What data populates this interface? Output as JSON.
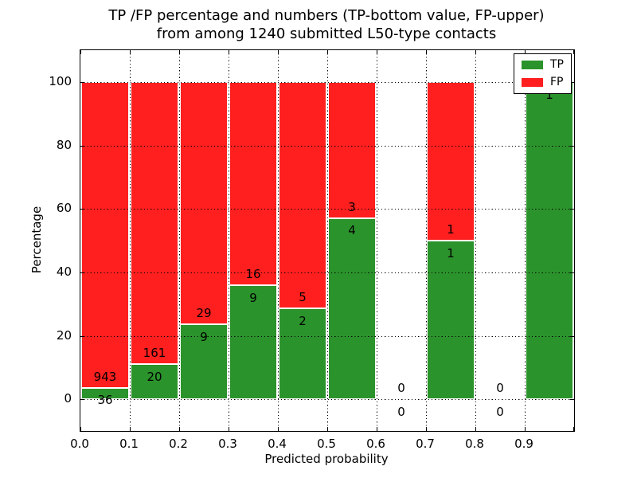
{
  "header": {
    "title_line1": "TP /FP percentage and numbers (TP-bottom value, FP-upper)",
    "title_line2": "from among 1240 submitted L50-type contacts"
  },
  "chart_data": {
    "type": "bar",
    "stacked": true,
    "title": "TP /FP percentage and numbers (TP-bottom value, FP-upper) from among 1240 submitted L50-type contacts",
    "xlabel": "Predicted probability",
    "ylabel": "Percentage",
    "xlim": [
      0.0,
      1.0
    ],
    "ylim": [
      -10,
      110
    ],
    "grid": true,
    "grid_style": "dotted, drawn above bars",
    "legend_position": "upper right",
    "bin_width": 0.1,
    "bin_starts": [
      0.0,
      0.1,
      0.2,
      0.3,
      0.4,
      0.5,
      0.6,
      0.7,
      0.8,
      0.9
    ],
    "xtick_labels": [
      "0.0",
      "0.1",
      "0.2",
      "0.3",
      "0.4",
      "0.5",
      "0.6",
      "0.7",
      "0.8",
      "0.9"
    ],
    "ytick_values": [
      0,
      20,
      40,
      60,
      80,
      100
    ],
    "annotation_rule": "bar numbers are raw counts: TP count just below the green/red boundary, FP count just above it; empty bins show 0 above and 0 below the zero line",
    "series": [
      {
        "name": "TP",
        "color": "#2b932b",
        "counts": [
          36,
          20,
          9,
          9,
          2,
          4,
          0,
          1,
          0,
          1
        ]
      },
      {
        "name": "FP",
        "color": "#ff1f1f",
        "counts": [
          943,
          161,
          29,
          16,
          5,
          3,
          0,
          1,
          0,
          0
        ]
      }
    ],
    "tp_percent_by_bin": [
      3.7,
      11.0,
      23.7,
      36.0,
      28.6,
      57.1,
      null,
      50.0,
      null,
      100.0
    ]
  },
  "legend": {
    "items": [
      {
        "label": "TP",
        "color": "#2b932b"
      },
      {
        "label": "FP",
        "color": "#ff1f1f"
      }
    ]
  }
}
